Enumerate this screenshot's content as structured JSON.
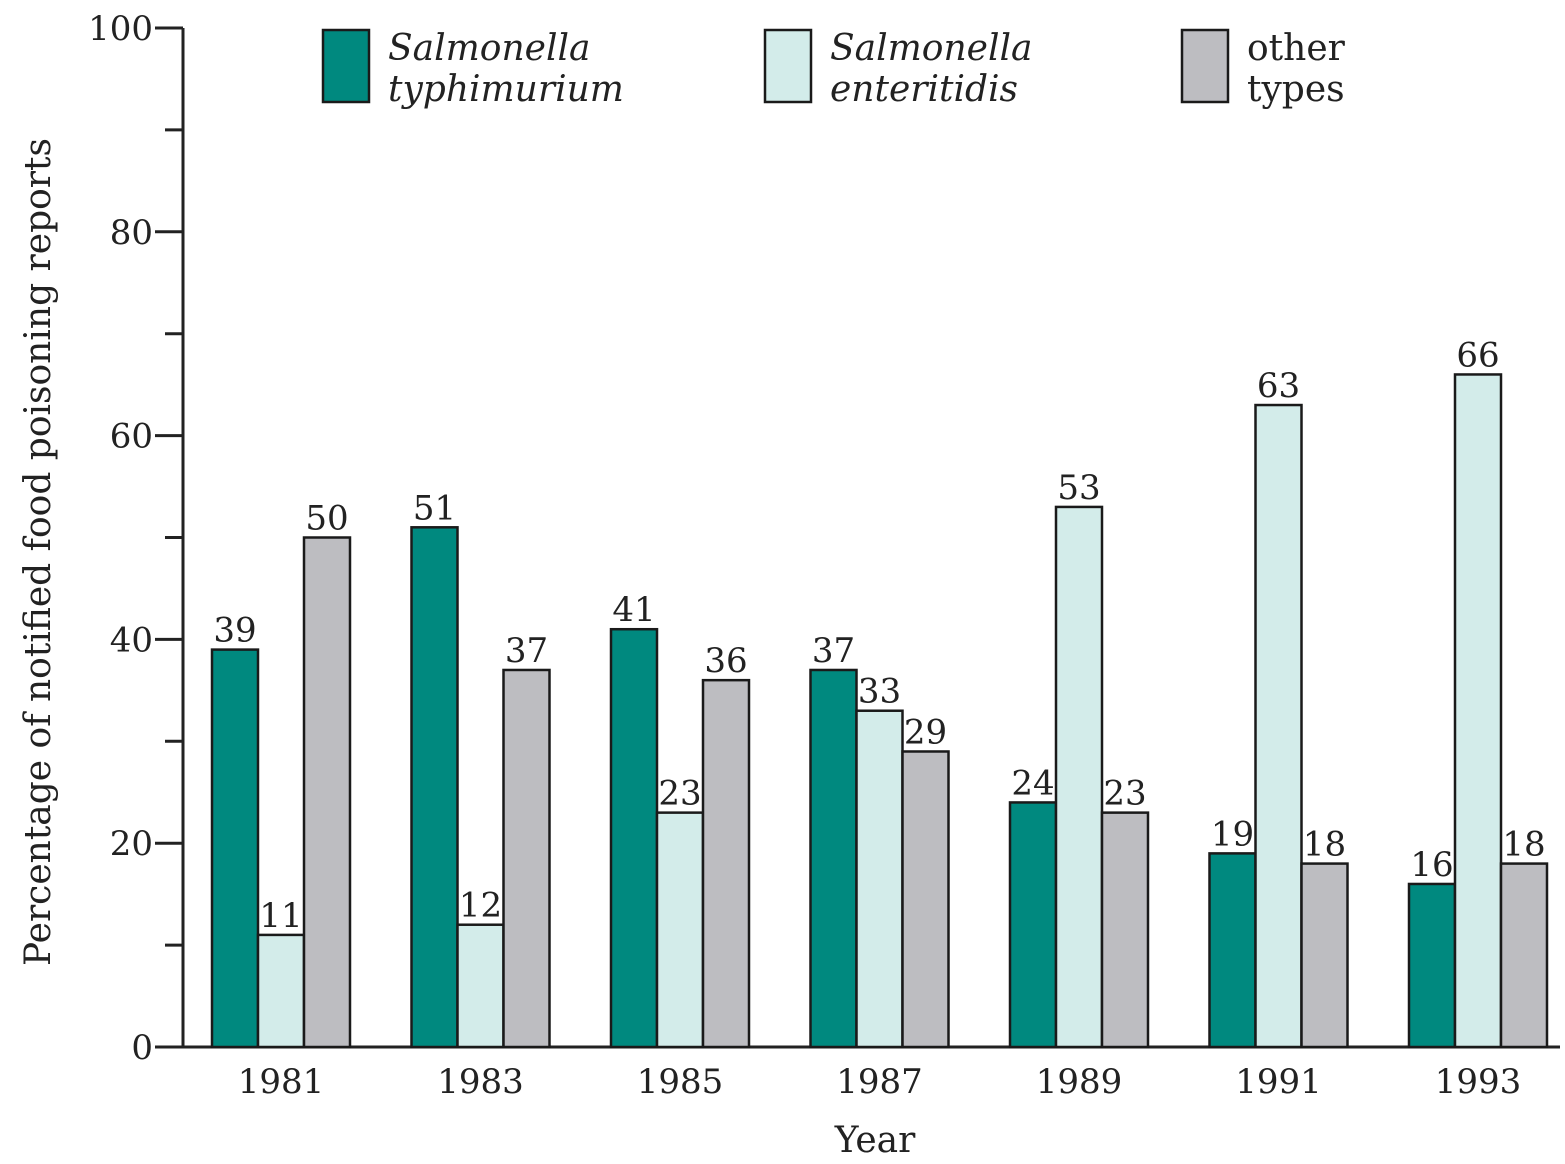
{
  "chart_data": {
    "type": "bar",
    "title": "",
    "xlabel": "Year",
    "ylabel": "Percentage of notified food poisoning reports",
    "ylim": [
      0,
      100
    ],
    "yticks": [
      0,
      20,
      40,
      60,
      80,
      100
    ],
    "categories": [
      "1981",
      "1983",
      "1985",
      "1987",
      "1989",
      "1991",
      "1993"
    ],
    "series": [
      {
        "name": "Salmonella typhimurium",
        "legend_lines": [
          "Salmonella",
          "typhimurium"
        ],
        "italic": true,
        "color": "#00897f",
        "values": [
          39,
          51,
          41,
          37,
          24,
          19,
          16
        ]
      },
      {
        "name": "Salmonella enteritidis",
        "legend_lines": [
          "Salmonella",
          "enteritidis"
        ],
        "italic": true,
        "color": "#d3ecea",
        "values": [
          11,
          12,
          23,
          33,
          53,
          63,
          66
        ]
      },
      {
        "name": "other types",
        "legend_lines": [
          "other",
          "types"
        ],
        "italic": false,
        "color": "#bdbdc1",
        "values": [
          50,
          37,
          36,
          29,
          23,
          18,
          18
        ]
      }
    ],
    "grid": false,
    "legend_position": "top"
  }
}
